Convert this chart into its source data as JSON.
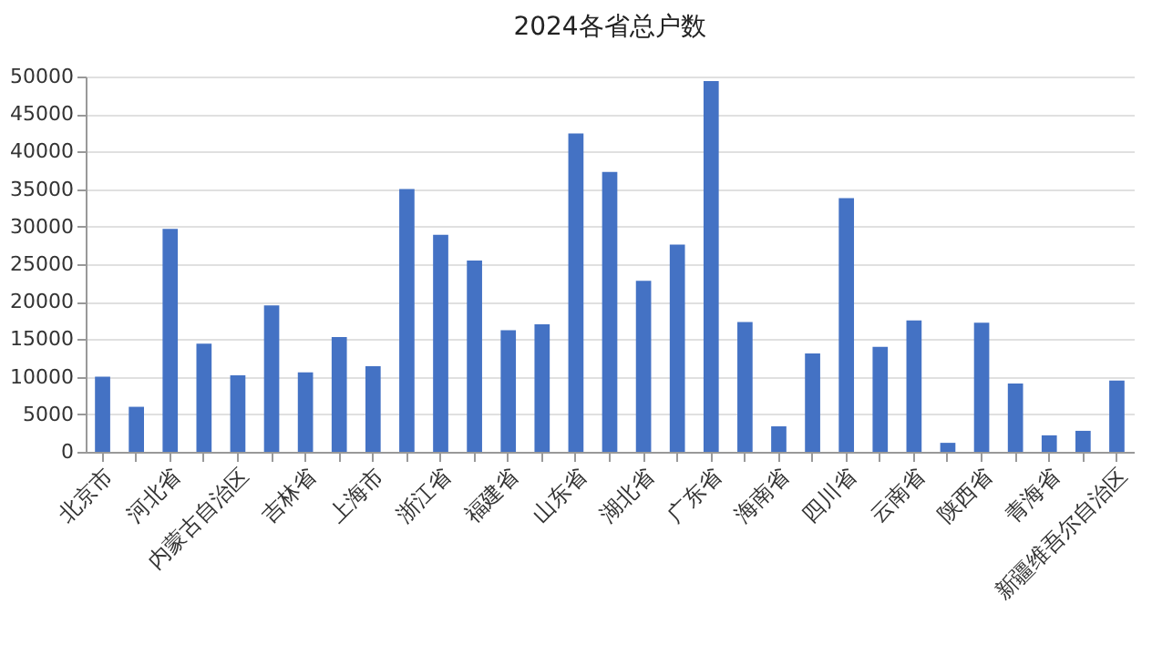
{
  "chart_data": {
    "type": "bar",
    "title": "2024各省总户数",
    "categories": [
      "北京市",
      null,
      "河北省",
      null,
      "内蒙古自治区",
      null,
      "吉林省",
      null,
      "上海市",
      null,
      "浙江省",
      null,
      "福建省",
      null,
      "山东省",
      null,
      "湖北省",
      null,
      "广东省",
      null,
      "海南省",
      null,
      "四川省",
      null,
      "云南省",
      null,
      "陕西省",
      null,
      "青海省",
      null,
      "新疆维吾尔自治区"
    ],
    "values": [
      10000,
      6000,
      29700,
      14400,
      10200,
      19500,
      10600,
      15300,
      11400,
      35000,
      28900,
      25500,
      16200,
      17000,
      42400,
      37300,
      22800,
      27600,
      49400,
      17300,
      3400,
      13100,
      33800,
      14000,
      17500,
      1200,
      17200,
      9100,
      2200,
      2800,
      9500
    ],
    "color": "#4472c4",
    "ylim": [
      0,
      50000
    ],
    "yticks": [
      0,
      5000,
      10000,
      15000,
      20000,
      25000,
      30000,
      35000,
      40000,
      45000,
      50000
    ],
    "grid": "y"
  }
}
